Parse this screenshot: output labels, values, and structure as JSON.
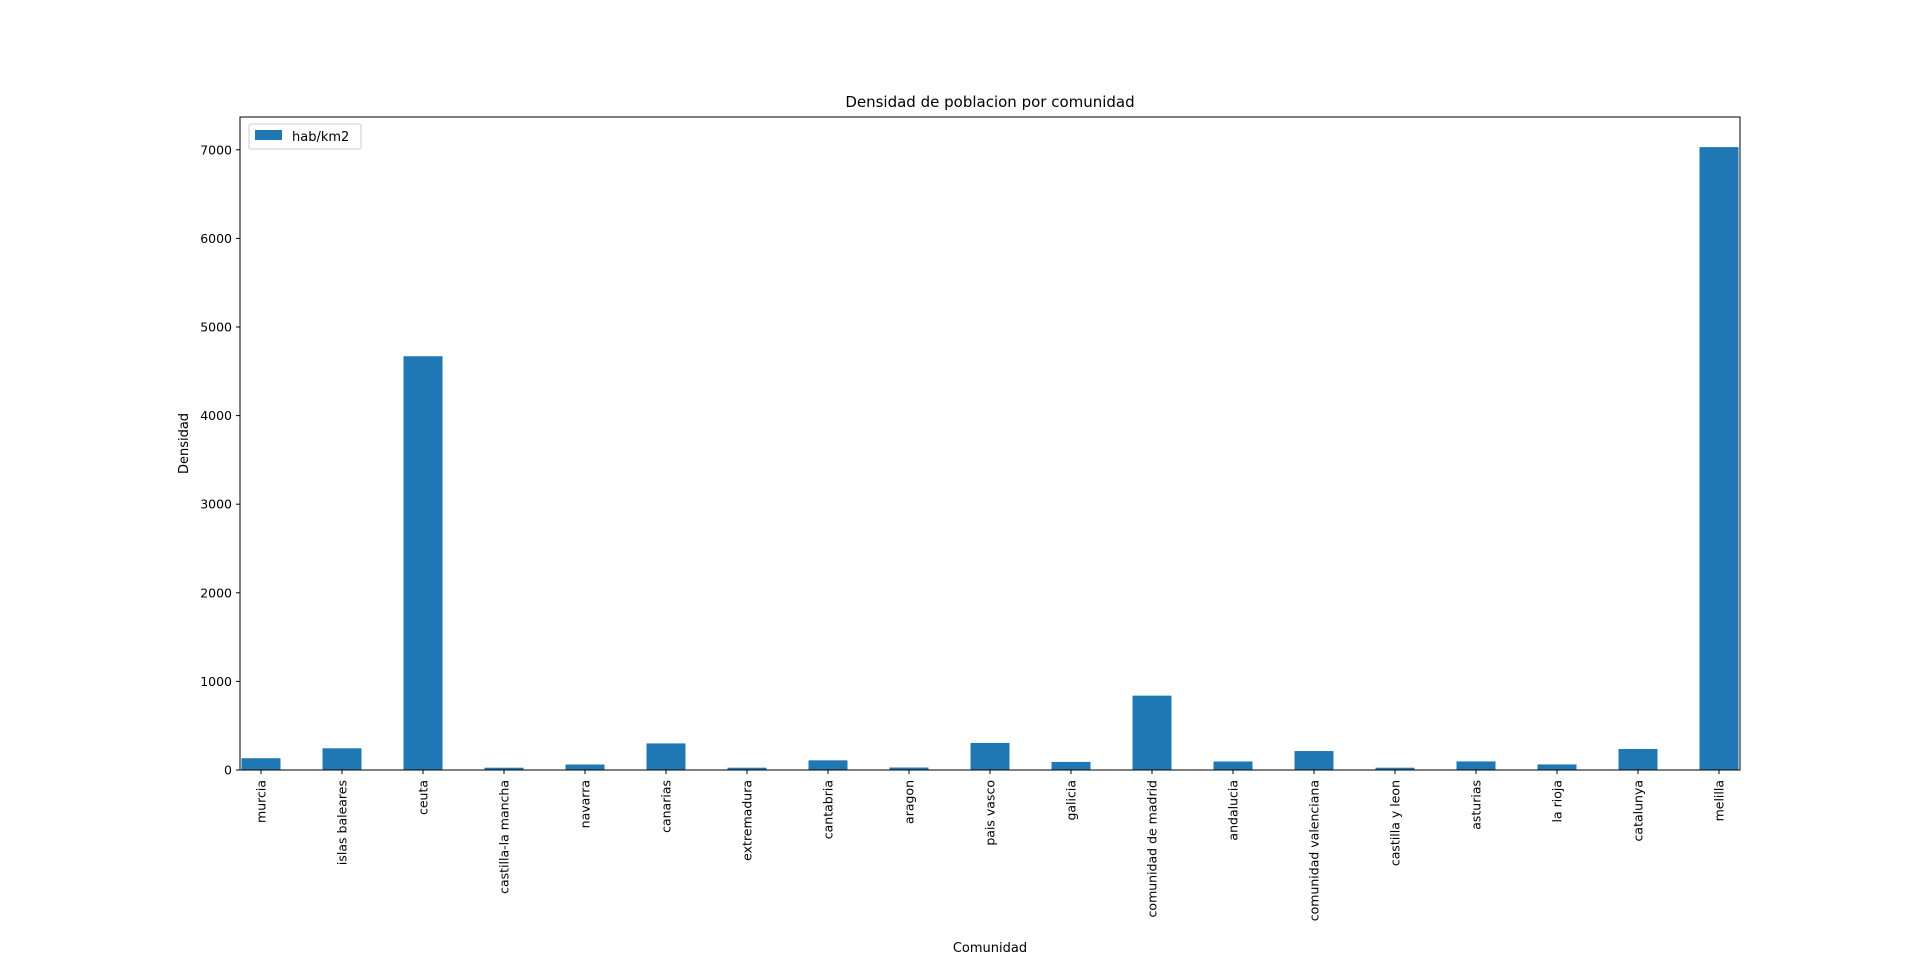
{
  "chart_data": {
    "type": "bar",
    "title": "Densidad de poblacion por comunidad",
    "xlabel": "Comunidad",
    "ylabel": "Densidad",
    "categories": [
      "murcia",
      "islas baleares",
      "ceuta",
      "castilla-la mancha",
      "navarra",
      "canarias",
      "extremadura",
      "cantabria",
      "aragon",
      "pais vasco",
      "galicia",
      "comunidad de madrid",
      "andalucia",
      "comunidad valenciana",
      "castilla y leon",
      "asturias",
      "la rioja",
      "catalunya",
      "melilla"
    ],
    "series": [
      {
        "name": "hab/km2",
        "color": "#1f77b4",
        "values": [
          133,
          245,
          4670,
          26,
          62,
          300,
          26,
          109,
          28,
          305,
          91,
          839,
          96,
          214,
          26,
          97,
          63,
          237,
          7030
        ]
      }
    ],
    "ylim": [
      0,
      7370
    ],
    "yticks": [
      0,
      1000,
      2000,
      3000,
      4000,
      5000,
      6000,
      7000
    ],
    "grid": false,
    "legend_position": "top-left"
  }
}
